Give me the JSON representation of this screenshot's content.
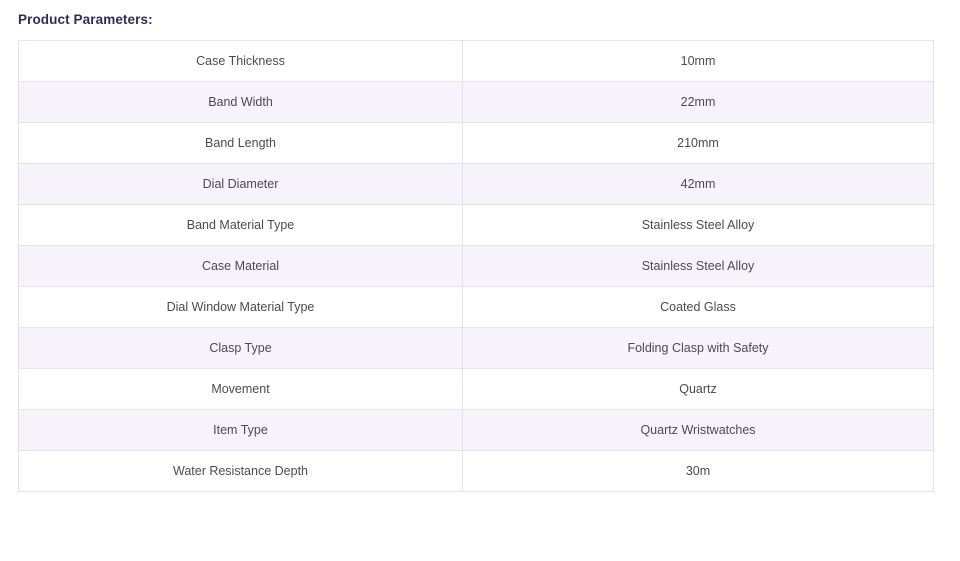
{
  "heading": "Product Parameters:",
  "colors": {
    "heading_text": "#312d58",
    "cell_text": "#4b4b53",
    "alt_row_background": "#f6f3fb",
    "table_border": "#e4e1ea",
    "page_background": "#ffffff"
  },
  "table": {
    "columns": [
      "parameter_name",
      "parameter_value"
    ],
    "rows": [
      {
        "name": "Case Thickness",
        "value": "10mm"
      },
      {
        "name": "Band Width",
        "value": "22mm"
      },
      {
        "name": "Band Length",
        "value": "210mm"
      },
      {
        "name": "Dial Diameter",
        "value": "42mm"
      },
      {
        "name": "Band Material Type",
        "value": "Stainless Steel Alloy"
      },
      {
        "name": "Case Material",
        "value": "Stainless Steel Alloy"
      },
      {
        "name": "Dial Window Material Type",
        "value": "Coated Glass"
      },
      {
        "name": "Clasp Type",
        "value": "Folding Clasp with Safety"
      },
      {
        "name": "Movement",
        "value": "Quartz"
      },
      {
        "name": "Item Type",
        "value": "Quartz Wristwatches"
      },
      {
        "name": "Water Resistance Depth",
        "value": "30m"
      }
    ]
  }
}
